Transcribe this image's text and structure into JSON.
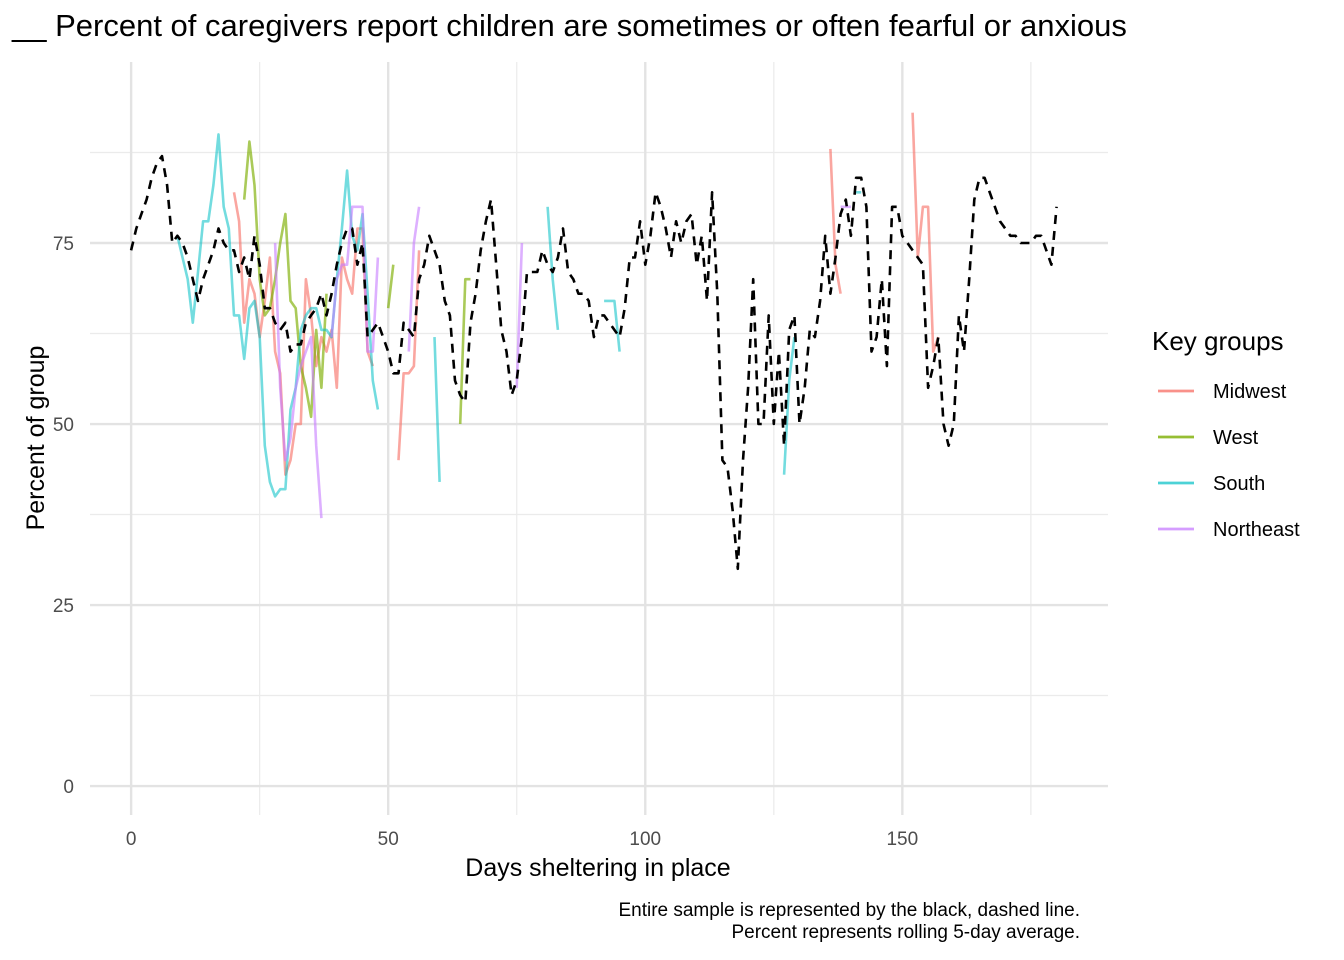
{
  "chart_data": {
    "type": "line",
    "title": "__ Percent of caregivers report children are sometimes or often fearful or anxious",
    "xlabel": "Days sheltering in place",
    "ylabel": "Percent of group",
    "xlim": [
      -8,
      190
    ],
    "ylim": [
      -4,
      100
    ],
    "x_ticks": [
      0,
      50,
      100,
      150
    ],
    "y_ticks": [
      0,
      25,
      50,
      75
    ],
    "grid": true,
    "legend": {
      "title": "Key groups",
      "position": "right"
    },
    "caption_lines": [
      "Entire sample is represented by the black, dashed line.",
      "Percent represents rolling 5-day average."
    ],
    "series": [
      {
        "name": "Midwest",
        "color": "#F8766D",
        "x": [
          20,
          21,
          22,
          23,
          24,
          25,
          26,
          27,
          28,
          29,
          30,
          31,
          32,
          33,
          34,
          35,
          36,
          37,
          38,
          39,
          40,
          41,
          42,
          43,
          44,
          45,
          46,
          47,
          null,
          52,
          53,
          54,
          55,
          56,
          null,
          136,
          137,
          138,
          null,
          152,
          153,
          154,
          155,
          156,
          157
        ],
        "y": [
          82,
          78,
          64,
          70,
          68,
          62,
          67,
          73,
          60,
          57,
          43,
          45,
          50,
          50,
          70,
          65,
          58,
          62,
          60,
          63,
          55,
          73,
          70,
          68,
          77,
          77,
          60,
          58,
          null,
          45,
          57,
          57,
          58,
          74,
          null,
          88,
          72,
          68,
          null,
          93,
          73,
          80,
          80,
          60,
          62
        ],
        "opacity": 0.65
      },
      {
        "name": "West",
        "color": "#7CAE00",
        "x": [
          22,
          23,
          24,
          25,
          26,
          27,
          28,
          29,
          30,
          31,
          32,
          33,
          34,
          35,
          36,
          37,
          38,
          null,
          50,
          51,
          null,
          64,
          65,
          66
        ],
        "y": [
          81,
          89,
          83,
          70,
          65,
          66,
          70,
          75,
          79,
          67,
          66,
          58,
          55,
          51,
          63,
          55,
          68,
          null,
          66,
          72,
          null,
          50,
          70,
          70
        ],
        "opacity": 0.65
      },
      {
        "name": "South",
        "color": "#00BFC4",
        "x": [
          9,
          10,
          11,
          12,
          13,
          14,
          15,
          16,
          17,
          18,
          19,
          20,
          21,
          22,
          23,
          24,
          25,
          26,
          27,
          28,
          29,
          30,
          31,
          32,
          33,
          34,
          35,
          36,
          37,
          38,
          39,
          40,
          41,
          42,
          43,
          44,
          45,
          46,
          47,
          48,
          null,
          59,
          60,
          null,
          81,
          82,
          83,
          null,
          92,
          93,
          94,
          95,
          null,
          127,
          128,
          129,
          null,
          141,
          142
        ],
        "y": [
          76,
          73,
          70,
          64,
          71,
          78,
          78,
          83,
          90,
          80,
          77,
          65,
          65,
          59,
          66,
          67,
          62,
          47,
          42,
          40,
          41,
          41,
          52,
          55,
          63,
          65,
          66,
          66,
          63,
          63,
          62,
          70,
          77,
          85,
          76,
          74,
          79,
          68,
          56,
          52,
          null,
          62,
          42,
          null,
          80,
          70,
          63,
          null,
          67,
          67,
          67,
          60,
          null,
          43,
          56,
          62,
          null,
          82,
          82
        ],
        "opacity": 0.55
      },
      {
        "name": "Northeast",
        "color": "#C77CFF",
        "x": [
          28,
          29,
          30,
          31,
          32,
          33,
          34,
          35,
          36,
          37,
          null,
          39,
          40,
          41,
          42,
          43,
          44,
          45,
          46,
          47,
          48,
          null,
          54,
          55,
          56,
          null,
          75,
          76,
          null,
          138,
          139,
          140
        ],
        "y": [
          75,
          55,
          45,
          48,
          55,
          58,
          60,
          62,
          47,
          37,
          null,
          62,
          70,
          72,
          72,
          80,
          80,
          80,
          60,
          60,
          73,
          null,
          60,
          75,
          80,
          null,
          55,
          75,
          null,
          80,
          80,
          80
        ],
        "opacity": 0.6
      }
    ],
    "reference_series": {
      "name": "Entire sample",
      "color": "#000000",
      "dashed": true,
      "x": [
        0,
        1,
        2,
        3,
        4,
        5,
        6,
        7,
        8,
        9,
        10,
        11,
        12,
        13,
        14,
        15,
        16,
        17,
        18,
        19,
        20,
        21,
        22,
        23,
        24,
        25,
        26,
        27,
        28,
        29,
        30,
        31,
        32,
        33,
        34,
        35,
        36,
        37,
        38,
        39,
        40,
        41,
        42,
        43,
        44,
        45,
        46,
        47,
        48,
        49,
        50,
        51,
        52,
        53,
        54,
        55,
        56,
        57,
        58,
        59,
        60,
        61,
        62,
        63,
        64,
        65,
        66,
        67,
        68,
        69,
        70,
        71,
        72,
        73,
        74,
        75,
        76,
        77,
        78,
        79,
        80,
        81,
        82,
        83,
        84,
        85,
        86,
        87,
        88,
        89,
        90,
        91,
        92,
        93,
        94,
        95,
        96,
        97,
        98,
        99,
        100,
        101,
        102,
        103,
        104,
        105,
        106,
        107,
        108,
        109,
        110,
        111,
        112,
        113,
        114,
        115,
        116,
        117,
        118,
        119,
        120,
        121,
        122,
        123,
        124,
        125,
        126,
        127,
        128,
        129,
        130,
        131,
        132,
        133,
        134,
        135,
        136,
        137,
        138,
        139,
        140,
        141,
        142,
        143,
        144,
        145,
        146,
        147,
        148,
        149,
        150,
        151,
        152,
        153,
        154,
        155,
        156,
        157,
        158,
        159,
        160,
        161,
        162,
        163,
        164,
        165,
        166,
        167,
        168,
        169,
        170,
        171,
        172,
        173,
        174,
        175,
        176,
        177,
        178,
        179,
        180
      ],
      "y": [
        74,
        77,
        79,
        81,
        84,
        86,
        87,
        83,
        75,
        76,
        75,
        73,
        70,
        67,
        70,
        72,
        74,
        77,
        75,
        74,
        74,
        71,
        73,
        70,
        76,
        72,
        66,
        66,
        64,
        63,
        64,
        60,
        61,
        61,
        64,
        65,
        66,
        68,
        65,
        68,
        72,
        75,
        77,
        77,
        72,
        75,
        62,
        63,
        64,
        62,
        60,
        57,
        57,
        64,
        63,
        62,
        70,
        72,
        76,
        74,
        72,
        67,
        65,
        56,
        54,
        53,
        64,
        68,
        74,
        78,
        81,
        72,
        63,
        60,
        54,
        56,
        62,
        71,
        71,
        71,
        74,
        72,
        71,
        73,
        77,
        71,
        70,
        68,
        68,
        67,
        62,
        65,
        65,
        64,
        63,
        62,
        66,
        73,
        73,
        78,
        72,
        76,
        82,
        80,
        77,
        73,
        78,
        75,
        78,
        79,
        72,
        76,
        67,
        82,
        68,
        45,
        44,
        38,
        30,
        45,
        55,
        70,
        50,
        50,
        65,
        50,
        60,
        47,
        63,
        65,
        50,
        55,
        63,
        62,
        67,
        76,
        68,
        73,
        79,
        81,
        76,
        84,
        84,
        80,
        60,
        62,
        70,
        58,
        80,
        80,
        76,
        75,
        74,
        73,
        72,
        55,
        58,
        62,
        50,
        47,
        50,
        65,
        60,
        70,
        81,
        84,
        84,
        82,
        80,
        78,
        77,
        76,
        76,
        75,
        75,
        75,
        76,
        76,
        74,
        72,
        80
      ]
    }
  }
}
